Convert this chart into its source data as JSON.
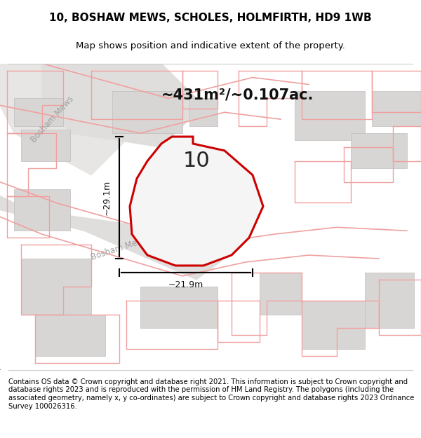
{
  "title": "10, BOSHAW MEWS, SCHOLES, HOLMFIRTH, HD9 1WB",
  "subtitle": "Map shows position and indicative extent of the property.",
  "area_text": "~431m²/~0.107ac.",
  "width_text": "~21.9m",
  "height_text": "~29.1m",
  "number_label": "10",
  "footer_text": "Contains OS data © Crown copyright and database right 2021. This information is subject to Crown copyright and database rights 2023 and is reproduced with the permission of HM Land Registry. The polygons (including the associated geometry, namely x, y co-ordinates) are subject to Crown copyright and database rights 2023 Ordnance Survey 100026316.",
  "bg_color": "#f0eeec",
  "map_bg_color": "#f0eeec",
  "property_fill": "#e8e8e8",
  "road_color": "#d8d8d8",
  "building_fill": "#d8d8d8",
  "red_line_color": "#cc0000",
  "pink_line_color": "#f0a0a0",
  "dim_line_color": "#000000",
  "text_color": "#000000",
  "road_label_color": "#808080"
}
